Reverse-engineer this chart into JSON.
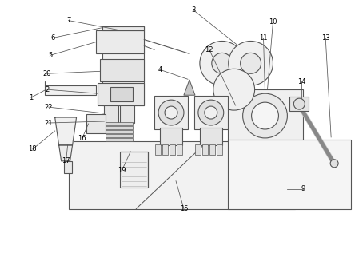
{
  "background_color": "#ffffff",
  "line_color": "#555555",
  "label_color": "#000000",
  "figsize": [
    4.44,
    3.17
  ],
  "dpi": 100
}
